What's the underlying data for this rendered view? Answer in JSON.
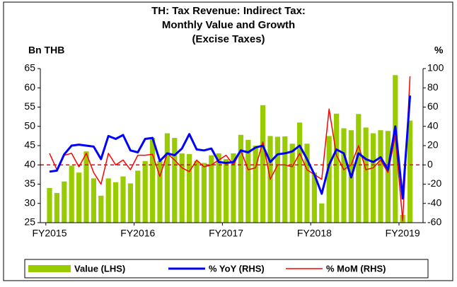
{
  "chart_data": {
    "type": "bar_line_combo",
    "title": [
      "TH: Tax Revenue: Indirect Tax:",
      "Monthly Value and Growth",
      "(Excise Taxes)"
    ],
    "y_label": "Bn THB",
    "y2_label": "%",
    "categories": [
      "FY2015",
      null,
      null,
      null,
      null,
      null,
      null,
      null,
      null,
      null,
      null,
      null,
      "FY2016",
      null,
      null,
      null,
      null,
      null,
      null,
      null,
      null,
      null,
      null,
      null,
      "FY2017",
      null,
      null,
      null,
      null,
      null,
      null,
      null,
      null,
      null,
      null,
      null,
      "FY2018",
      null,
      null,
      null,
      null,
      null,
      null,
      null,
      null,
      null,
      null,
      null,
      "FY2019",
      null
    ],
    "series": [
      {
        "name": "Value (LHS)",
        "kind": "bar",
        "axis": "y",
        "color": "#99cc00",
        "values": [
          34,
          32.7,
          35.7,
          39.8,
          38,
          43.5,
          36.5,
          32,
          36.5,
          35.5,
          37,
          35.2,
          38.5,
          41,
          47,
          41,
          48.2,
          47,
          43,
          42.8,
          41,
          40.5,
          42.5,
          43,
          41.5,
          43,
          47.8,
          46.5,
          45,
          55.5,
          47.5,
          47.3,
          47.4,
          45.5,
          51,
          45.5,
          38,
          30,
          47.5,
          53.3,
          49.5,
          49,
          53.2,
          49.7,
          48.2,
          49,
          48.8,
          63.3,
          27,
          51.5
        ]
      },
      {
        "name": "% YoY (RHS)",
        "kind": "line",
        "axis": "y2",
        "color": "#0000ff",
        "values": [
          -7,
          -6,
          11,
          20,
          21,
          20,
          19,
          6,
          30,
          27,
          31,
          15,
          13,
          27,
          28,
          4,
          12,
          10,
          17,
          32,
          16,
          15,
          17,
          3,
          2,
          3,
          15,
          13,
          18,
          20,
          3,
          11,
          12,
          14,
          20,
          6,
          -10,
          -30,
          0,
          16,
          12,
          -13,
          12,
          6,
          3,
          8,
          -5,
          40,
          -35,
          72
        ]
      },
      {
        "name": "% MoM (RHS)",
        "kind": "line",
        "axis": "y2",
        "color": "#ff0000",
        "values": [
          12,
          -5,
          10,
          12,
          -2,
          12,
          -8,
          -20,
          12,
          0,
          5,
          -5,
          10,
          10,
          11,
          -12,
          12,
          5,
          -3,
          -7,
          5,
          -2,
          0,
          5,
          10,
          0,
          15,
          -5,
          -3,
          24,
          -15,
          0,
          0,
          -2,
          12,
          -5,
          -10,
          -15,
          58,
          10,
          -5,
          0,
          20,
          -5,
          -3,
          5,
          -8,
          30,
          -58,
          92
        ]
      }
    ],
    "ylim": [
      25,
      65
    ],
    "yticks": [
      25,
      30,
      35,
      40,
      45,
      50,
      55,
      60,
      65
    ],
    "y2lim": [
      -60,
      100
    ],
    "y2ticks": [
      -60,
      -40,
      -20,
      0,
      20,
      40,
      60,
      80,
      100
    ],
    "y2_reference": 0,
    "reference_color": "#ff0000",
    "legend": "bottom"
  }
}
